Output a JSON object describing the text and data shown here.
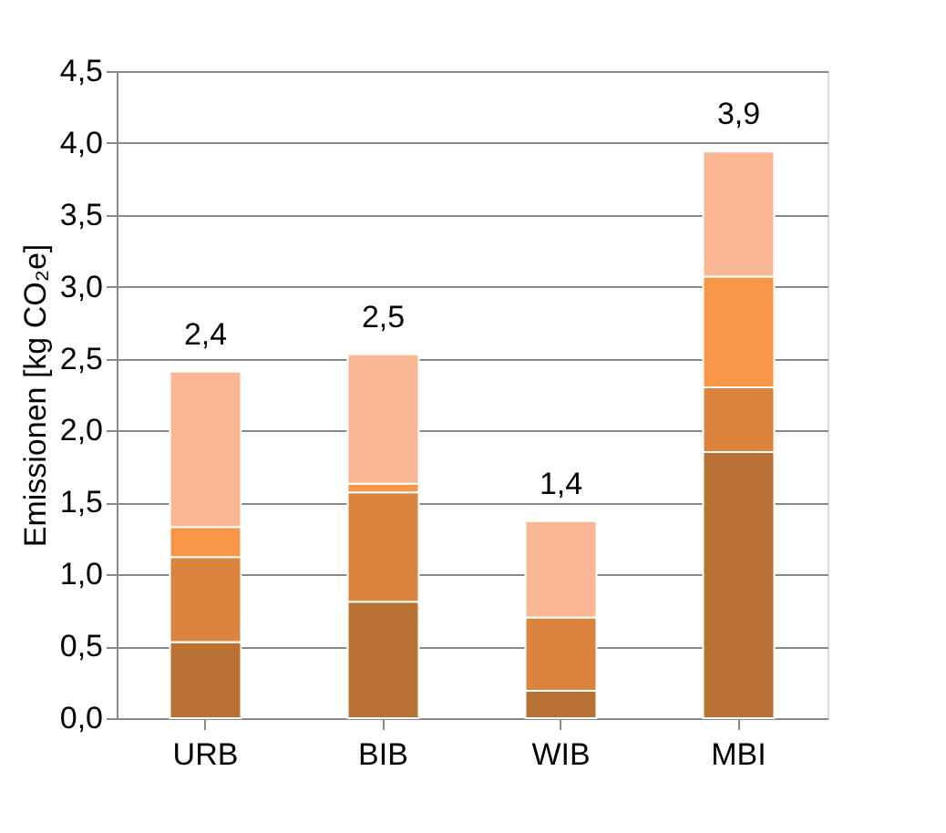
{
  "chart_data": {
    "type": "bar",
    "stacked": true,
    "ylabel": "Emissionen [kg CO₂e]",
    "categories": [
      "URB",
      "BIB",
      "WIB",
      "MBI"
    ],
    "series": [
      {
        "color": "#b97234",
        "values": [
          0.53,
          0.81,
          0.19,
          1.85
        ]
      },
      {
        "color": "#db843f",
        "values": [
          0.59,
          0.76,
          0.51,
          0.45
        ]
      },
      {
        "color": "#f79646",
        "values": [
          0.21,
          0.06,
          0,
          0.77
        ]
      },
      {
        "color": "#f9b794",
        "values": [
          1.08,
          0.9,
          0.67,
          0.87
        ]
      }
    ],
    "totals": [
      "2,4",
      "2,5",
      "1,4",
      "3,9"
    ],
    "ylim": [
      0,
      4.5
    ],
    "yticks": [
      {
        "value": 0,
        "label": "0,0"
      },
      {
        "value": 0.5,
        "label": "0,5"
      },
      {
        "value": 1,
        "label": "1,0"
      },
      {
        "value": 1.5,
        "label": "1,5"
      },
      {
        "value": 2,
        "label": "2,0"
      },
      {
        "value": 2.5,
        "label": "2,5"
      },
      {
        "value": 3,
        "label": "3,0"
      },
      {
        "value": 3.5,
        "label": "3,5"
      },
      {
        "value": 4,
        "label": "4,0"
      },
      {
        "value": 4.5,
        "label": "4,5"
      }
    ],
    "grid": "y",
    "legend": false
  }
}
